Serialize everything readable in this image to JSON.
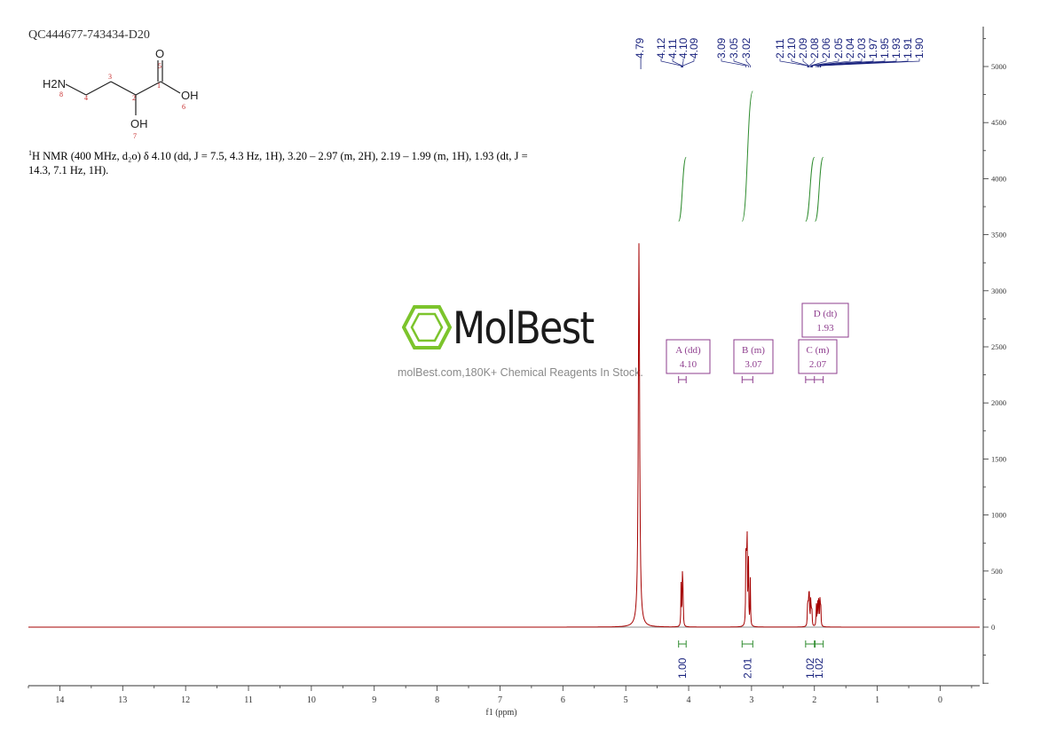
{
  "sample_id": "QC444677-743434-D20",
  "nmr_description": {
    "nucleus_sup": "1",
    "text": "H NMR (400 MHz, d₂o) δ 4.10 (dd, J = 7.5, 4.3 Hz, 1H), 3.20 – 2.97 (m, 2H), 2.19 – 1.99 (m, 1H), 1.93 (dt, J = 14.3, 7.1 Hz, 1H)."
  },
  "watermark": {
    "brand": "MolBest",
    "tagline": "molBest.com,180K+ Chemical Reagents In Stock."
  },
  "structure": {
    "labels": [
      "H2N",
      "O",
      "OH",
      "OH"
    ],
    "atom_numbers": [
      "1",
      "2",
      "3",
      "4",
      "5",
      "6",
      "7",
      "8"
    ]
  },
  "colors": {
    "spectrum": "#a50000",
    "integral": "#2e8b2e",
    "peak_labels": "#1a237e",
    "multiplet_box": "#8e3d8e",
    "axis": "#333333",
    "atom_numbers": "#c62828",
    "logo_green": "#7cc42c"
  },
  "chart_data": {
    "type": "line",
    "title": "",
    "xlabel": "f1 (ppm)",
    "ylabel": "",
    "xlim": [
      14.5,
      -0.6
    ],
    "ylim": [
      -550,
      5300
    ],
    "x_ticks": [
      14,
      13,
      12,
      11,
      10,
      9,
      8,
      7,
      6,
      5,
      4,
      3,
      2,
      1,
      0
    ],
    "y_ticks": [
      0,
      500,
      1000,
      1500,
      2000,
      2500,
      3000,
      3500,
      4000,
      4500,
      5000
    ],
    "series": [
      {
        "peaks": [
          {
            "ppm": 4.79,
            "height": 3440
          },
          {
            "ppm": 4.12,
            "height": 380
          },
          {
            "ppm": 4.1,
            "height": 420
          },
          {
            "ppm": 4.09,
            "height": 370
          },
          {
            "ppm": 3.09,
            "height": 560
          },
          {
            "ppm": 3.08,
            "height": 640
          },
          {
            "ppm": 3.07,
            "height": 720
          },
          {
            "ppm": 3.05,
            "height": 690
          },
          {
            "ppm": 3.02,
            "height": 420
          },
          {
            "ppm": 2.11,
            "height": 150
          },
          {
            "ppm": 2.1,
            "height": 200
          },
          {
            "ppm": 2.09,
            "height": 240
          },
          {
            "ppm": 2.08,
            "height": 260
          },
          {
            "ppm": 2.06,
            "height": 210
          },
          {
            "ppm": 2.05,
            "height": 160
          },
          {
            "ppm": 2.04,
            "height": 130
          },
          {
            "ppm": 1.97,
            "height": 210
          },
          {
            "ppm": 1.95,
            "height": 280
          },
          {
            "ppm": 1.93,
            "height": 330
          },
          {
            "ppm": 1.91,
            "height": 260
          },
          {
            "ppm": 1.9,
            "height": 190
          }
        ]
      }
    ],
    "peak_labels": [
      "4.79",
      "4.12",
      "4.11",
      "4.10",
      "4.09",
      "3.09",
      "3.05",
      "3.02",
      "2.11",
      "2.10",
      "2.09",
      "2.08",
      "2.06",
      "2.05",
      "2.04",
      "2.03",
      "1.97",
      "1.95",
      "1.93",
      "1.91",
      "1.90"
    ],
    "peak_label_ppm": [
      4.79,
      4.12,
      4.11,
      4.1,
      4.09,
      3.09,
      3.05,
      3.02,
      2.11,
      2.1,
      2.09,
      2.08,
      2.06,
      2.05,
      2.04,
      2.03,
      1.97,
      1.95,
      1.93,
      1.91,
      1.9
    ],
    "integrals": [
      {
        "from": 4.16,
        "to": 4.04,
        "value": "1.00"
      },
      {
        "from": 3.15,
        "to": 2.98,
        "value": "2.01"
      },
      {
        "from": 2.14,
        "to": 2.0,
        "value": "1.02"
      },
      {
        "from": 1.99,
        "to": 1.86,
        "value": "1.02"
      }
    ],
    "multiplets": [
      {
        "label": "A (dd)",
        "shift": "4.10",
        "from": 4.16,
        "to": 4.04
      },
      {
        "label": "B (m)",
        "shift": "3.07",
        "from": 3.15,
        "to": 2.98
      },
      {
        "label": "C (m)",
        "shift": "2.07",
        "from": 2.14,
        "to": 2.0
      },
      {
        "label": "D (dt)",
        "shift": "1.93",
        "from": 1.99,
        "to": 1.86
      }
    ]
  }
}
